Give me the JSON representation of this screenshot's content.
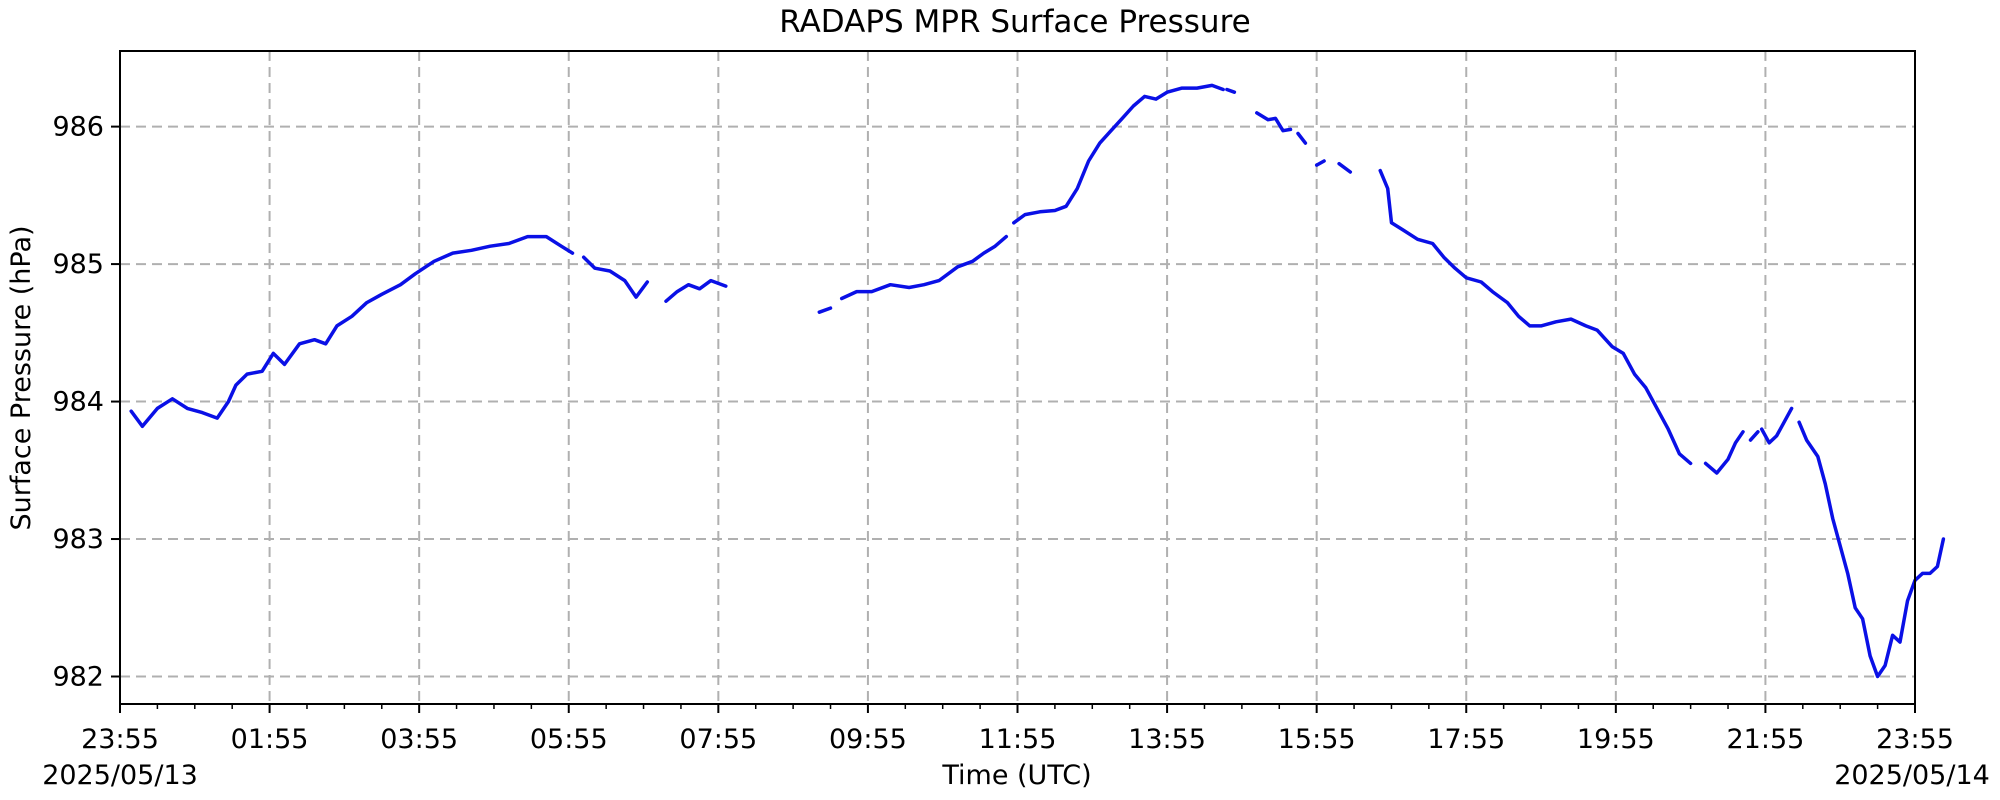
{
  "chart_data": {
    "type": "line",
    "title": "RADAPS MPR Surface Pressure",
    "xlabel": "Time (UTC)",
    "ylabel": "Surface Pressure (hPa)",
    "x_unit": "hours from 23:55",
    "xlim": [
      0,
      24
    ],
    "ylim": [
      981.8,
      986.55
    ],
    "x_ticks": [
      0,
      2,
      4,
      6,
      8,
      10,
      12,
      14,
      16,
      18,
      20,
      22,
      24
    ],
    "x_tick_labels": [
      "23:55",
      "01:55",
      "03:55",
      "05:55",
      "07:55",
      "09:55",
      "11:55",
      "13:55",
      "15:55",
      "17:55",
      "19:55",
      "21:55",
      "23:55"
    ],
    "y_ticks": [
      982,
      983,
      984,
      985,
      986
    ],
    "y_tick_labels": [
      "982",
      "983",
      "984",
      "985",
      "986"
    ],
    "start_date_label": "2025/05/13",
    "end_date_label": "2025/05/14",
    "grid": true,
    "line_color": "#0a10e6",
    "series_segments": [
      [
        [
          0.15,
          983.93
        ],
        [
          0.3,
          983.82
        ],
        [
          0.5,
          983.95
        ],
        [
          0.7,
          984.02
        ],
        [
          0.9,
          983.95
        ],
        [
          1.1,
          983.92
        ],
        [
          1.3,
          983.88
        ],
        [
          1.45,
          984.0
        ],
        [
          1.55,
          984.12
        ],
        [
          1.7,
          984.2
        ],
        [
          1.9,
          984.22
        ],
        [
          2.05,
          984.35
        ],
        [
          2.2,
          984.27
        ],
        [
          2.4,
          984.42
        ],
        [
          2.6,
          984.45
        ],
        [
          2.75,
          984.42
        ],
        [
          2.9,
          984.55
        ],
        [
          3.1,
          984.62
        ],
        [
          3.3,
          984.72
        ],
        [
          3.5,
          984.78
        ],
        [
          3.75,
          984.85
        ],
        [
          3.95,
          984.93
        ],
        [
          4.2,
          985.02
        ],
        [
          4.45,
          985.08
        ],
        [
          4.7,
          985.1
        ],
        [
          4.95,
          985.13
        ],
        [
          5.2,
          985.15
        ],
        [
          5.45,
          985.2
        ],
        [
          5.7,
          985.2
        ],
        [
          5.9,
          985.13
        ],
        [
          6.05,
          985.08
        ]
      ],
      [
        [
          6.2,
          985.05
        ],
        [
          6.35,
          984.97
        ],
        [
          6.55,
          984.95
        ],
        [
          6.75,
          984.88
        ],
        [
          6.9,
          984.76
        ],
        [
          7.05,
          984.87
        ]
      ],
      [
        [
          7.3,
          984.73
        ],
        [
          7.45,
          984.8
        ],
        [
          7.6,
          984.85
        ],
        [
          7.75,
          984.82
        ],
        [
          7.9,
          984.88
        ],
        [
          8.1,
          984.84
        ]
      ],
      [
        [
          9.35,
          984.65
        ],
        [
          9.5,
          984.68
        ]
      ],
      [
        [
          9.65,
          984.75
        ],
        [
          9.85,
          984.8
        ],
        [
          10.05,
          984.8
        ],
        [
          10.3,
          984.85
        ],
        [
          10.55,
          984.83
        ],
        [
          10.75,
          984.85
        ],
        [
          10.95,
          984.88
        ],
        [
          11.2,
          984.98
        ],
        [
          11.4,
          985.02
        ],
        [
          11.55,
          985.08
        ],
        [
          11.7,
          985.13
        ],
        [
          11.85,
          985.2
        ]
      ],
      [
        [
          11.95,
          985.3
        ],
        [
          12.1,
          985.36
        ],
        [
          12.3,
          985.38
        ],
        [
          12.5,
          985.39
        ],
        [
          12.65,
          985.42
        ],
        [
          12.8,
          985.55
        ],
        [
          12.95,
          985.75
        ],
        [
          13.1,
          985.88
        ],
        [
          13.25,
          985.97
        ],
        [
          13.4,
          986.06
        ],
        [
          13.55,
          986.15
        ],
        [
          13.7,
          986.22
        ],
        [
          13.85,
          986.2
        ],
        [
          14.0,
          986.25
        ],
        [
          14.2,
          986.28
        ],
        [
          14.4,
          986.28
        ],
        [
          14.6,
          986.3
        ],
        [
          14.75,
          986.27
        ]
      ],
      [
        [
          14.8,
          986.27
        ],
        [
          14.9,
          986.25
        ]
      ],
      [
        [
          15.2,
          986.1
        ],
        [
          15.35,
          986.05
        ],
        [
          15.45,
          986.06
        ],
        [
          15.55,
          985.97
        ],
        [
          15.65,
          985.98
        ]
      ],
      [
        [
          15.75,
          985.95
        ],
        [
          15.85,
          985.88
        ]
      ],
      [
        [
          16.0,
          985.72
        ],
        [
          16.1,
          985.75
        ]
      ],
      [
        [
          16.3,
          985.73
        ],
        [
          16.45,
          985.67
        ]
      ],
      [
        [
          16.85,
          985.68
        ],
        [
          16.95,
          985.55
        ],
        [
          17.0,
          985.3
        ],
        [
          17.15,
          985.25
        ],
        [
          17.35,
          985.18
        ],
        [
          17.55,
          985.15
        ],
        [
          17.7,
          985.05
        ],
        [
          17.85,
          984.97
        ],
        [
          18.0,
          984.9
        ],
        [
          18.2,
          984.87
        ],
        [
          18.35,
          984.8
        ],
        [
          18.55,
          984.72
        ],
        [
          18.7,
          984.62
        ],
        [
          18.85,
          984.55
        ],
        [
          19.0,
          984.55
        ],
        [
          19.2,
          984.58
        ],
        [
          19.4,
          984.6
        ],
        [
          19.6,
          984.55
        ],
        [
          19.75,
          984.52
        ],
        [
          19.95,
          984.4
        ],
        [
          20.1,
          984.35
        ],
        [
          20.25,
          984.2
        ],
        [
          20.4,
          984.1
        ],
        [
          20.55,
          983.95
        ],
        [
          20.7,
          983.8
        ],
        [
          20.85,
          983.62
        ],
        [
          21.0,
          983.55
        ]
      ],
      [
        [
          21.2,
          983.55
        ],
        [
          21.35,
          983.48
        ],
        [
          21.5,
          983.58
        ],
        [
          21.6,
          983.7
        ],
        [
          21.7,
          983.78
        ]
      ],
      [
        [
          21.8,
          983.72
        ],
        [
          21.9,
          983.78
        ]
      ],
      [
        [
          21.95,
          983.8
        ],
        [
          22.05,
          983.7
        ],
        [
          22.15,
          983.75
        ],
        [
          22.25,
          983.85
        ],
        [
          22.35,
          983.95
        ]
      ],
      [
        [
          22.45,
          983.85
        ],
        [
          22.55,
          983.72
        ],
        [
          22.7,
          983.6
        ],
        [
          22.8,
          983.4
        ],
        [
          22.9,
          983.15
        ],
        [
          23.0,
          982.95
        ],
        [
          23.1,
          982.75
        ],
        [
          23.2,
          982.5
        ],
        [
          23.3,
          982.42
        ],
        [
          23.4,
          982.15
        ],
        [
          23.5,
          982.0
        ],
        [
          23.6,
          982.08
        ],
        [
          23.7,
          982.3
        ],
        [
          23.8,
          982.25
        ],
        [
          23.9,
          982.55
        ],
        [
          24.0,
          982.7
        ],
        [
          24.1,
          982.75
        ],
        [
          24.2,
          982.75
        ],
        [
          24.3,
          982.8
        ],
        [
          24.38,
          983.0
        ]
      ]
    ]
  }
}
